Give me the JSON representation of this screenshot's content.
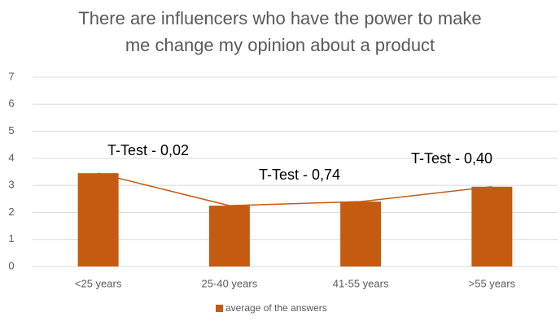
{
  "chart_data": {
    "type": "bar",
    "title": "There are influencers who have the power to make me change my opinion about a product",
    "categories": [
      "<25 years",
      "25-40 years",
      "41-55 years",
      ">55 years"
    ],
    "series": [
      {
        "name": "average of the answers",
        "color": "#c55a11",
        "values": [
          3.45,
          2.25,
          2.4,
          2.95
        ]
      }
    ],
    "trend_line": true,
    "annotations": [
      "T-Test - 0,02",
      "T-Test - 0,74",
      "T-Test - 0,40"
    ],
    "ylim": [
      0,
      7
    ],
    "yticks": [
      0,
      1,
      2,
      3,
      4,
      5,
      6,
      7
    ],
    "grid": true,
    "legend": "bottom"
  }
}
